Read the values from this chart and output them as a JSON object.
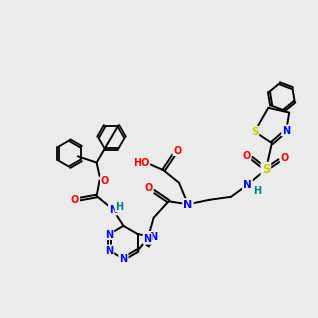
{
  "background_color": "#ebebeb",
  "atom_colors": {
    "N": "#0000ff",
    "O": "#ff0000",
    "S": "#cccc00",
    "H": "#008080"
  },
  "bond_color": "#000000",
  "bond_width": 1.4
}
